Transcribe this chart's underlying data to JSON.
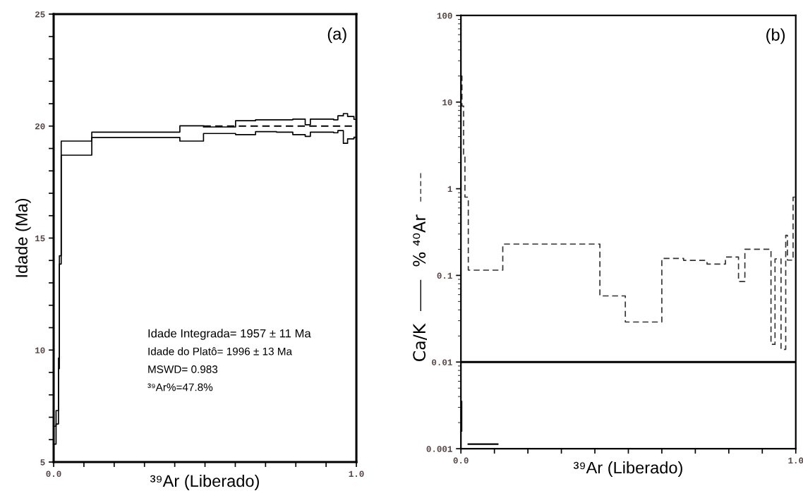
{
  "chart_data": [
    {
      "type": "step",
      "title": "(a)",
      "ylabel": "Idade (Ma)",
      "xlabel": "³⁹Ar (Liberado)",
      "annotations": [
        "Idade Integrada= 1957 ± 11 Ma",
        "Idade do Platô= 1996 ± 13 Ma",
        "MSWD= 0.983",
        "³⁹Ar%=47.8%"
      ],
      "series": [
        {
          "type": "step",
          "color": "#000000",
          "line_style": "solid",
          "x": [
            0,
            0.008,
            0.016,
            0.019,
            0.025,
            0.126,
            0.417,
            0.495,
            0.601,
            0.667,
            0.736,
            0.79,
            0.831,
            0.848,
            0.925,
            0.939,
            0.957,
            0.971,
            0.992,
            1.0
          ],
          "values": [
            6.6,
            7.3,
            9.64,
            14.21,
            19.33,
            19.73,
            20.01,
            19.96,
            20.24,
            20.28,
            20.28,
            20.31,
            20.06,
            20.31,
            20.28,
            20.46,
            20.56,
            20.43,
            20.3,
            20.3
          ]
        },
        {
          "type": "step",
          "color": "#000000",
          "line_style": "solid",
          "x": [
            0,
            0.008,
            0.016,
            0.019,
            0.025,
            0.126,
            0.417,
            0.495,
            0.601,
            0.667,
            0.736,
            0.79,
            0.831,
            0.848,
            0.925,
            0.939,
            0.957,
            0.971,
            0.992,
            1.0
          ],
          "values": [
            5.8,
            6.7,
            9.17,
            13.84,
            18.7,
            19.49,
            19.33,
            19.67,
            19.62,
            19.75,
            19.73,
            19.62,
            19.54,
            19.73,
            19.7,
            19.8,
            19.23,
            19.43,
            19.5,
            19.5
          ]
        },
        {
          "type": "line",
          "color": "#000000",
          "line_style": "dashed",
          "x": [
            0.495,
            0.99
          ],
          "values": [
            20.0,
            20.0
          ]
        }
      ],
      "xlim": [
        0,
        1
      ],
      "ylim": [
        5,
        25
      ],
      "xticks": [
        {
          "value": 0,
          "label": "0.0"
        },
        {
          "value": 0.1,
          "label": null
        },
        {
          "value": 0.2,
          "label": null
        },
        {
          "value": 0.3,
          "label": null
        },
        {
          "value": 0.4,
          "label": null
        },
        {
          "value": 0.5,
          "label": null
        },
        {
          "value": 0.6,
          "label": null
        },
        {
          "value": 0.7,
          "label": null
        },
        {
          "value": 0.8,
          "label": null
        },
        {
          "value": 0.9,
          "label": null
        },
        {
          "value": 1,
          "label": "1.0"
        }
      ],
      "yticks": [
        5,
        {
          "value": 6,
          "label": null
        },
        {
          "value": 7,
          "label": null
        },
        {
          "value": 8,
          "label": null
        },
        {
          "value": 9,
          "label": null
        },
        10,
        {
          "value": 11,
          "label": null
        },
        {
          "value": 12,
          "label": null
        },
        {
          "value": 13,
          "label": null
        },
        {
          "value": 14,
          "label": null
        },
        15,
        {
          "value": 16,
          "label": null
        },
        {
          "value": 17,
          "label": null
        },
        {
          "value": 18,
          "label": null
        },
        {
          "value": 19,
          "label": null
        },
        20,
        {
          "value": 21,
          "label": null
        },
        {
          "value": 22,
          "label": null
        },
        {
          "value": 23,
          "label": null
        },
        {
          "value": 24,
          "label": null
        },
        25
      ],
      "grid": false
    },
    {
      "type": "step",
      "title": "(b)",
      "xlabel": "³⁹Ar (Liberado)",
      "log": "y",
      "legend": "left",
      "series": [
        {
          "name": "Ca/K",
          "type": "line",
          "color": "#000000",
          "line_style": "solid",
          "x": [
            0.002,
            0.002,
            0.01,
            0.022,
            0.11
          ],
          "values": [
            0.0035,
            0.0016,
            null,
            0.00113,
            0.00113
          ]
        },
        {
          "name": "% ⁴⁰Ar",
          "type": "step",
          "color": "#333333",
          "line_style": "dashed",
          "x": [
            0,
            0.003,
            0.008,
            0.012,
            0.022,
            0.125,
            0.415,
            0.491,
            0.6,
            0.665,
            0.735,
            0.79,
            0.829,
            0.848,
            0.926,
            0.938,
            0.956,
            0.97,
            0.975,
            0.992,
            1.0
          ],
          "values": [
            20,
            9,
            2.5,
            0.8,
            0.115,
            0.23,
            0.058,
            0.029,
            0.157,
            0.149,
            0.135,
            0.163,
            0.085,
            0.2,
            0.016,
            0.155,
            0.014,
            0.29,
            0.15,
            0.8,
            0.8
          ]
        }
      ],
      "ref_lines": [
        {
          "axis": "y",
          "value": 0.01,
          "color": "#000000",
          "line_style": "solid"
        }
      ],
      "xlim": [
        0,
        1
      ],
      "ylim": [
        0.001,
        100
      ],
      "xticks": [
        {
          "value": 0,
          "label": "0.0"
        },
        {
          "value": 0.1,
          "label": null
        },
        {
          "value": 0.2,
          "label": null
        },
        {
          "value": 0.3,
          "label": null
        },
        {
          "value": 0.4,
          "label": null
        },
        {
          "value": 0.5,
          "label": null
        },
        {
          "value": 0.6,
          "label": null
        },
        {
          "value": 0.7,
          "label": null
        },
        {
          "value": 0.8,
          "label": null
        },
        {
          "value": 0.9,
          "label": null
        },
        {
          "value": 1,
          "label": "1.0"
        }
      ],
      "yticks": [
        0.001,
        0.01,
        0.1,
        1,
        10,
        100
      ],
      "grid": false
    }
  ]
}
